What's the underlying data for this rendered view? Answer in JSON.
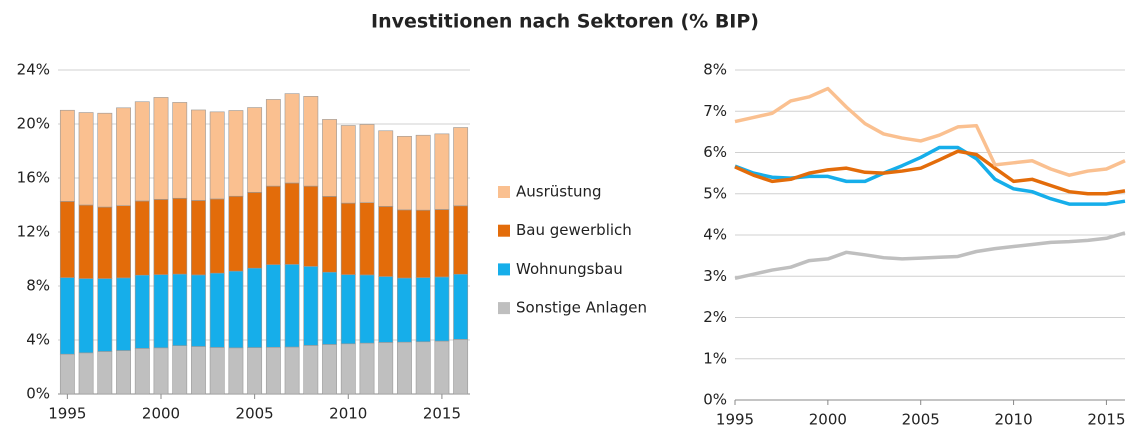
{
  "title": "Investitionen nach Sektoren (% BIP)",
  "chart_data": [
    {
      "type": "bar",
      "stacked": true,
      "legend": "right",
      "grid": true,
      "x": [
        1995,
        1996,
        1997,
        1998,
        1999,
        2000,
        2001,
        2002,
        2003,
        2004,
        2005,
        2006,
        2007,
        2008,
        2009,
        2010,
        2011,
        2012,
        2013,
        2014,
        2015,
        2016
      ],
      "xlim": [
        1994.5,
        2016.5
      ],
      "xticks": [
        1995,
        2000,
        2005,
        2010,
        2015
      ],
      "ylim": [
        0,
        24
      ],
      "yticks": [
        {
          "value": 0,
          "label": "0%"
        },
        {
          "value": 4,
          "label": "4%"
        },
        {
          "value": 8,
          "label": "8%"
        },
        {
          "value": 12,
          "label": "12%"
        },
        {
          "value": 16,
          "label": "16%"
        },
        {
          "value": 20,
          "label": "20%"
        },
        {
          "value": 24,
          "label": "24%"
        }
      ],
      "series": [
        {
          "name": "Sonstige Anlagen",
          "color": "#bfbfbf",
          "values": [
            2.95,
            3.05,
            3.15,
            3.22,
            3.38,
            3.42,
            3.58,
            3.52,
            3.45,
            3.42,
            3.44,
            3.46,
            3.48,
            3.6,
            3.67,
            3.72,
            3.77,
            3.82,
            3.84,
            3.87,
            3.92,
            4.05
          ]
        },
        {
          "name": "Wohnungsbau",
          "color": "#16aeea",
          "values": [
            5.67,
            5.5,
            5.4,
            5.38,
            5.42,
            5.42,
            5.3,
            5.3,
            5.5,
            5.68,
            5.88,
            6.12,
            6.12,
            5.85,
            5.35,
            5.12,
            5.05,
            4.88,
            4.75,
            4.75,
            4.75,
            4.82
          ]
        },
        {
          "name": "Bau gewerblich",
          "color": "#e36c0a",
          "values": [
            5.65,
            5.45,
            5.3,
            5.35,
            5.5,
            5.58,
            5.62,
            5.52,
            5.5,
            5.55,
            5.62,
            5.82,
            6.03,
            5.95,
            5.62,
            5.3,
            5.35,
            5.2,
            5.05,
            5.0,
            5.0,
            5.07
          ]
        },
        {
          "name": "Ausrüstung",
          "color": "#fac090",
          "values": [
            6.75,
            6.85,
            6.95,
            7.25,
            7.35,
            7.55,
            7.1,
            6.7,
            6.45,
            6.35,
            6.28,
            6.42,
            6.62,
            6.65,
            5.7,
            5.75,
            5.8,
            5.6,
            5.45,
            5.55,
            5.6,
            5.8
          ]
        }
      ]
    },
    {
      "type": "line",
      "grid": true,
      "x": [
        1995,
        1996,
        1997,
        1998,
        1999,
        2000,
        2001,
        2002,
        2003,
        2004,
        2005,
        2006,
        2007,
        2008,
        2009,
        2010,
        2011,
        2012,
        2013,
        2014,
        2015,
        2016
      ],
      "xlim": [
        1995,
        2016
      ],
      "xticks": [
        1995,
        2000,
        2005,
        2010,
        2015
      ],
      "ylim": [
        0,
        8
      ],
      "yticks": [
        {
          "value": 0,
          "label": "0%"
        },
        {
          "value": 1,
          "label": "1%"
        },
        {
          "value": 2,
          "label": "2%"
        },
        {
          "value": 3,
          "label": "3%"
        },
        {
          "value": 4,
          "label": "4%"
        },
        {
          "value": 5,
          "label": "5%"
        },
        {
          "value": 6,
          "label": "6%"
        },
        {
          "value": 7,
          "label": "7%"
        },
        {
          "value": 8,
          "label": "8%"
        }
      ],
      "series": [
        {
          "color": "#bfbfbf",
          "values": [
            2.95,
            3.05,
            3.15,
            3.22,
            3.38,
            3.42,
            3.58,
            3.52,
            3.45,
            3.42,
            3.44,
            3.46,
            3.48,
            3.6,
            3.67,
            3.72,
            3.77,
            3.82,
            3.84,
            3.87,
            3.92,
            4.05
          ]
        },
        {
          "color": "#16aeea",
          "values": [
            5.67,
            5.5,
            5.4,
            5.38,
            5.42,
            5.42,
            5.3,
            5.3,
            5.5,
            5.68,
            5.88,
            6.12,
            6.12,
            5.85,
            5.35,
            5.12,
            5.05,
            4.88,
            4.75,
            4.75,
            4.75,
            4.82
          ]
        },
        {
          "color": "#e36c0a",
          "values": [
            5.65,
            5.45,
            5.3,
            5.35,
            5.5,
            5.58,
            5.62,
            5.52,
            5.5,
            5.55,
            5.62,
            5.82,
            6.03,
            5.95,
            5.62,
            5.3,
            5.35,
            5.2,
            5.05,
            5.0,
            5.0,
            5.07
          ]
        },
        {
          "color": "#fac090",
          "values": [
            6.75,
            6.85,
            6.95,
            7.25,
            7.35,
            7.55,
            7.1,
            6.7,
            6.45,
            6.35,
            6.28,
            6.42,
            6.62,
            6.65,
            5.7,
            5.75,
            5.8,
            5.6,
            5.45,
            5.55,
            5.6,
            5.8
          ]
        }
      ]
    }
  ]
}
